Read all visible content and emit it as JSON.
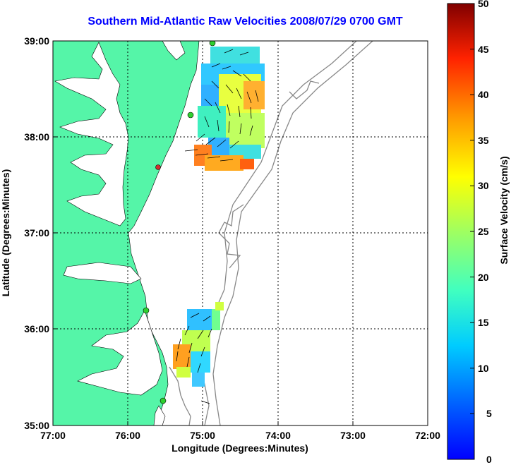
{
  "title": "Southern Mid-Atlantic Raw Velocities 2008/07/29 0700 GMT",
  "xlabel": "Longitude (Degrees:Minutes)",
  "ylabel": "Latitude (Degrees:Minutes)",
  "colorbar_label": "Surface Velocity (cm/s)",
  "xticks": [
    "77:00",
    "76:00",
    "75:00",
    "74:00",
    "73:00",
    "72:00"
  ],
  "yticks": [
    "39:00",
    "38:00",
    "37:00",
    "36:00",
    "35:00"
  ],
  "cticks": [
    "50",
    "45",
    "40",
    "35",
    "30",
    "25",
    "20",
    "15",
    "10",
    "5",
    "0"
  ],
  "colors": {
    "land": "#55f5a8",
    "title": "#0000ff",
    "bathymetry": "#888888",
    "station": "#2fd02f",
    "station_offline": "#d03030"
  },
  "colorbar_range": [
    0,
    50
  ],
  "lon_range": [
    -77,
    -72
  ],
  "lat_range": [
    35,
    39
  ]
}
